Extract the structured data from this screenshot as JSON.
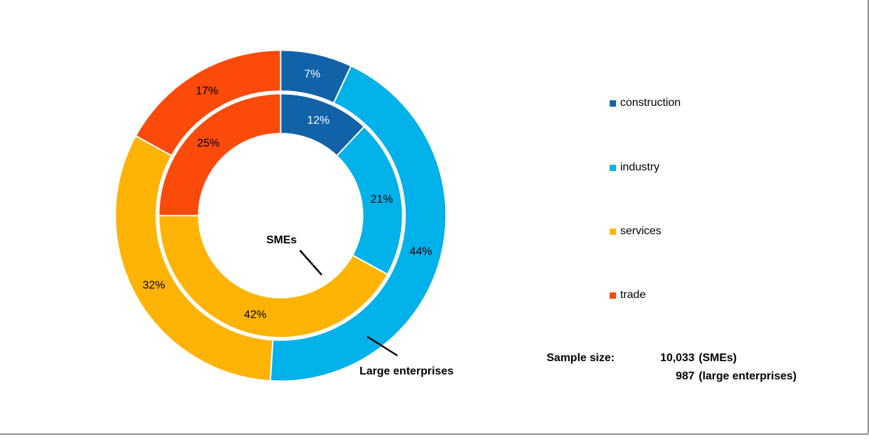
{
  "chart_data": {
    "type": "donut",
    "title": "",
    "categories": [
      "construction",
      "industry",
      "services",
      "trade"
    ],
    "colors": [
      "#1262A8",
      "#00B1EA",
      "#FFB305",
      "#FB4A09"
    ],
    "rings": [
      {
        "name": "SMEs",
        "position": "inner",
        "values": [
          12,
          21,
          42,
          25
        ],
        "labels": [
          "12%",
          "21%",
          "42%",
          "25%"
        ],
        "label_colors": [
          "#FFFFFF",
          "#000000",
          "#000000",
          "#000000"
        ]
      },
      {
        "name": "Large enterprises",
        "position": "outer",
        "values": [
          7,
          44,
          32,
          17
        ],
        "labels": [
          "7%",
          "44%",
          "32%",
          "17%"
        ],
        "label_colors": [
          "#FFFFFF",
          "#000000",
          "#000000",
          "#000000"
        ]
      }
    ],
    "start_angle_deg": 0,
    "direction": "clockwise",
    "legend_position": "right",
    "annotations": [
      "SMEs",
      "Large enterprises"
    ]
  },
  "legend": {
    "items": [
      {
        "label": "construction",
        "color": "#1262A8"
      },
      {
        "label": "industry",
        "color": "#00B1EA"
      },
      {
        "label": "services",
        "color": "#FFB305"
      },
      {
        "label": "trade",
        "color": "#FB4A09"
      }
    ]
  },
  "callouts": {
    "inner_ring_label": "SMEs",
    "outer_ring_label": "Large enterprises"
  },
  "sample_size": {
    "heading": "Sample size:",
    "rows": [
      {
        "number": "10,033",
        "suffix": "(SMEs)"
      },
      {
        "number": "987",
        "suffix": "(large enterprises)"
      }
    ]
  }
}
